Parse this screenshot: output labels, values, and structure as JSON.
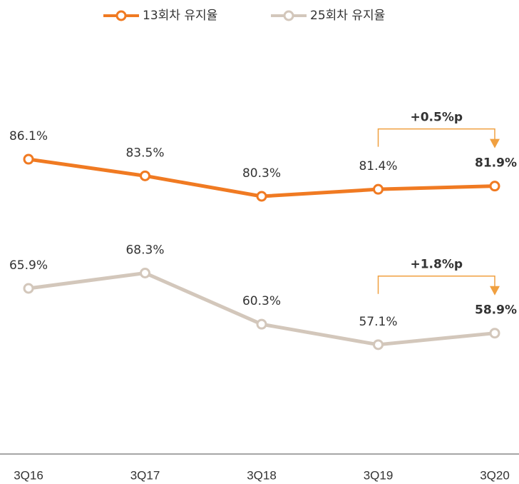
{
  "chart_data": {
    "type": "line",
    "categories": [
      "3Q16",
      "3Q17",
      "3Q18",
      "3Q19",
      "3Q20"
    ],
    "series": [
      {
        "name": "13회차 유지율",
        "color": "#f07a22",
        "values": [
          86.1,
          83.5,
          80.3,
          81.4,
          81.9
        ],
        "value_labels": [
          "86.1%",
          "83.5%",
          "80.3%",
          "81.4%",
          "81.9%"
        ]
      },
      {
        "name": "25회차 유지율",
        "color": "#d3c7bb",
        "values": [
          65.9,
          68.3,
          60.3,
          57.1,
          58.9
        ],
        "value_labels": [
          "65.9%",
          "68.3%",
          "60.3%",
          "57.1%",
          "58.9%"
        ]
      }
    ],
    "annotations": [
      "+0.5%p",
      "+1.8%p"
    ],
    "ylim": [
      40,
      111
    ],
    "legend": "top"
  }
}
